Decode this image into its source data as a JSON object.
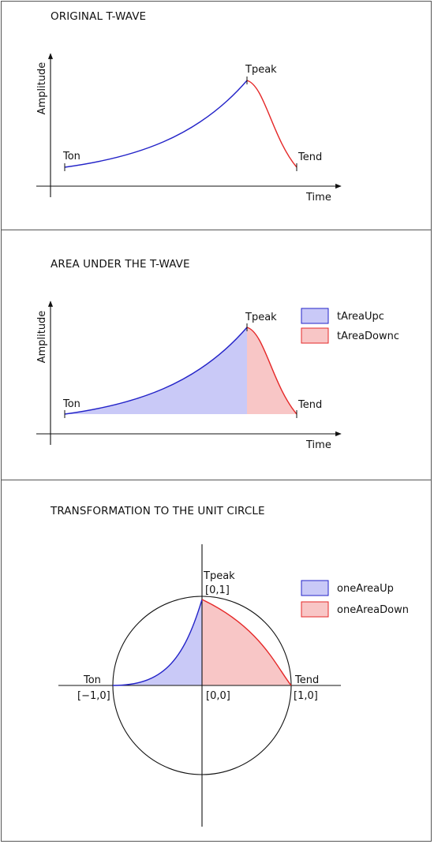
{
  "colors": {
    "up_stroke": "#2323c8",
    "down_stroke": "#e52828",
    "up_fill": "#c9c9f7",
    "down_fill": "#f8c6c6",
    "axis": "#111111",
    "border": "#555555"
  },
  "panel1": {
    "title": "ORIGINAL T-WAVE",
    "ylabel": "Amplitude",
    "xlabel": "Time",
    "ton": "Ton",
    "tpeak": "Tpeak",
    "tend": "Tend"
  },
  "panel2": {
    "title": "AREA UNDER THE T-WAVE",
    "ylabel": "Amplitude",
    "xlabel": "Time",
    "ton": "Ton",
    "tpeak": "Tpeak",
    "tend": "Tend",
    "legend_up": "tAreaUpc",
    "legend_down": "tAreaDownc"
  },
  "panel3": {
    "title": "TRANSFORMATION TO THE UNIT CIRCLE",
    "tpeak": "Tpeak",
    "tpeak_coord": "[0,1]",
    "ton": "Ton",
    "ton_coord": "[−1,0]",
    "origin_coord": "[0,0]",
    "tend": "Tend",
    "tend_coord": "[1,0]",
    "legend_up": "oneAreaUp",
    "legend_down": "oneAreaDown"
  }
}
